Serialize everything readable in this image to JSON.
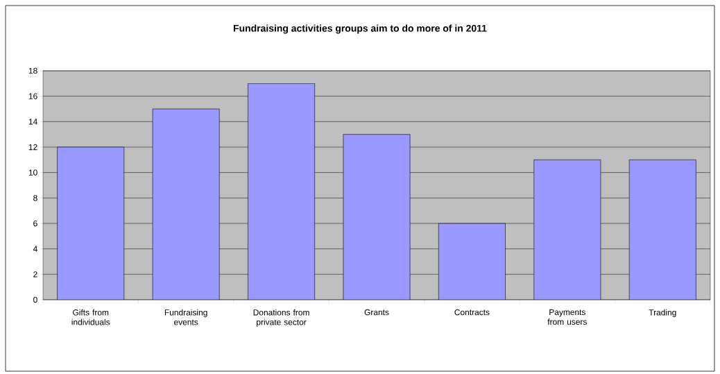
{
  "chart_data": {
    "type": "bar",
    "title": "Fundraising activities groups aim to do more of in 2011",
    "categories": [
      "Gifts from individuals",
      "Fundraising events",
      "Donations from private sector",
      "Grants",
      "Contracts",
      "Payments from users",
      "Trading"
    ],
    "values": [
      12,
      15,
      17,
      13,
      6,
      11,
      11
    ],
    "color": "#9999ff",
    "ylim": [
      0,
      18
    ],
    "yticks": [
      0,
      2,
      4,
      6,
      8,
      10,
      12,
      14,
      16,
      18
    ],
    "grid": "y"
  }
}
